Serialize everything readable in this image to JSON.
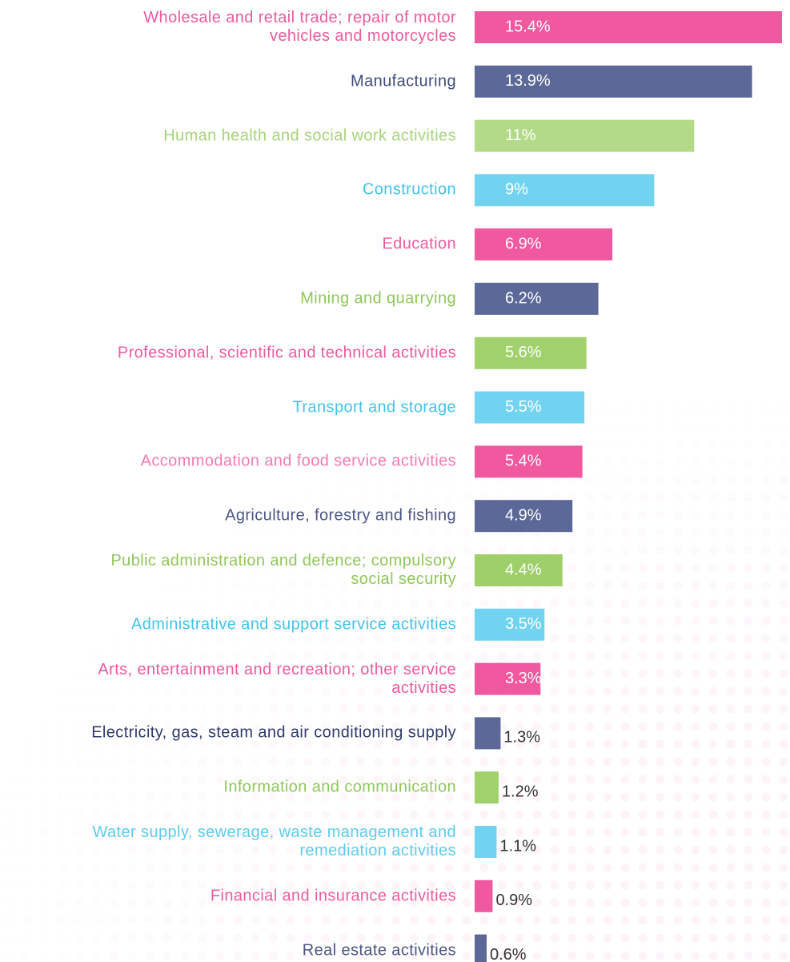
{
  "chart_data": {
    "type": "bar",
    "orientation": "horizontal",
    "categories": [
      "Wholesale and retail trade; repair of motor\nvehicles and motorcycles",
      "Manufacturing",
      "Human health and social work activities",
      "Construction",
      "Education",
      "Mining and quarrying",
      "Professional, scientific and technical activities",
      "Transport and storage",
      "Accommodation and food service activities",
      "Agriculture, forestry and fishing",
      "Public administration and defence; compulsory\nsocial security",
      "Administrative and support service activities",
      "Arts, entertainment and recreation; other service\nactivities",
      "Electricity, gas, steam and air conditioning supply",
      "Information and communication",
      "Water supply, sewerage, waste management and\nremediation activities",
      "Financial and insurance activities",
      "Real estate activities"
    ],
    "values": [
      15.4,
      13.9,
      11,
      9,
      6.9,
      6.2,
      5.6,
      5.5,
      5.4,
      4.9,
      4.4,
      3.5,
      3.3,
      1.3,
      1.2,
      1.1,
      0.9,
      0.6
    ],
    "value_labels": [
      "15.4%",
      "13.9%",
      "11%",
      "9%",
      "6.9%",
      "6.2%",
      "5.6%",
      "5.5%",
      "5.4%",
      "4.9%",
      "4.4%",
      "3.5%",
      "3.3%",
      "1.3%",
      "1.2%",
      "1.1%",
      "0.9%",
      "0.6%"
    ],
    "colors": [
      "#f0589f",
      "#5b6898",
      "#b3da88",
      "#72d3f1",
      "#f0589f",
      "#5b6898",
      "#a0d16c",
      "#72d3f1",
      "#f0589f",
      "#5b6898",
      "#9ecf6a",
      "#72d3f1",
      "#f0589f",
      "#5b6898",
      "#a0d16c",
      "#72d3f1",
      "#f0589f",
      "#5b6898"
    ],
    "label_colors": [
      "#ee5a9f",
      "#3f4c7c",
      "#a6d57a",
      "#3fc4ea",
      "#ee5a9f",
      "#8fc75a",
      "#ee5a9f",
      "#3fc4ea",
      "#f27bb3",
      "#4a5785",
      "#8fc75a",
      "#3fc4ea",
      "#ee5a9f",
      "#2f3c6b",
      "#8fc75a",
      "#5ccdee",
      "#ee5a9f",
      "#4a5785"
    ]
  }
}
